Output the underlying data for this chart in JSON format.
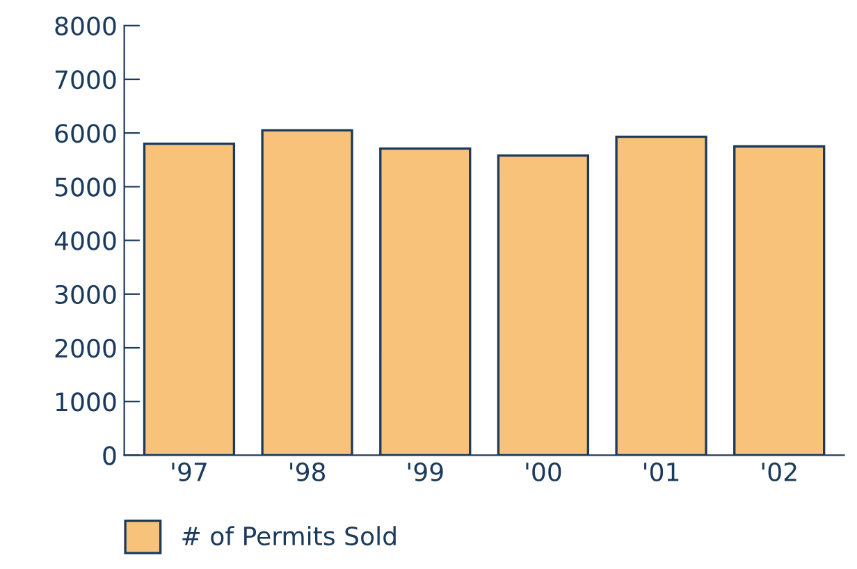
{
  "chart_data": {
    "type": "bar",
    "categories": [
      "'97",
      "'98",
      "'99",
      "'00",
      "'01",
      "'02"
    ],
    "series": [
      {
        "name": "# of Permits Sold",
        "color": "#f9c27a",
        "values": [
          5800,
          6050,
          5710,
          5580,
          5930,
          5750
        ]
      }
    ],
    "ylim": [
      0,
      8000
    ],
    "yticks": [
      0,
      1000,
      2000,
      3000,
      4000,
      5000,
      6000,
      7000,
      8000
    ],
    "grid": false,
    "legend": "bottom left"
  }
}
